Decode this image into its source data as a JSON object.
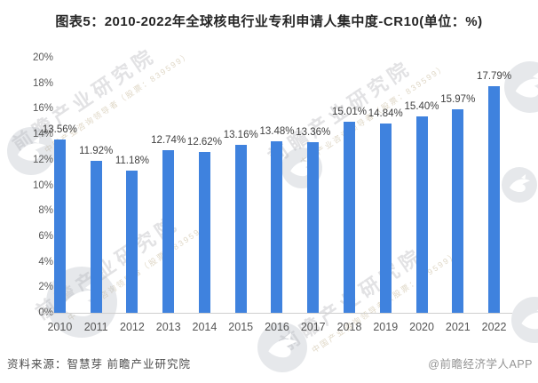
{
  "title": "图表5：2010-2022年全球核电行业专利申请人集中度-CR10(单位：%)",
  "footer": {
    "source": "资料来源：智慧芽 前瞻产业研究院",
    "brand": "@前瞻经济学人APP"
  },
  "watermark": {
    "main_text": "前瞻产业研究院",
    "sub_text": "中国产业咨询领导者（股票：839599）"
  },
  "colors": {
    "bar": "#3f82de",
    "title_text": "#262626",
    "axis_text": "#595959",
    "value_label_text": "#404040",
    "baseline": "#cfcfcf",
    "source_text": "#4d4d4d",
    "brand_text": "#949494"
  },
  "chart_data": {
    "type": "bar",
    "title": "图表5：2010-2022年全球核电行业专利申请人集中度-CR10(单位：%)",
    "categories": [
      "2010",
      "2011",
      "2012",
      "2013",
      "2014",
      "2015",
      "2016",
      "2017",
      "2018",
      "2019",
      "2020",
      "2021",
      "2022"
    ],
    "values": [
      13.56,
      11.92,
      11.18,
      12.74,
      12.62,
      13.16,
      13.48,
      13.36,
      15.01,
      14.84,
      15.4,
      15.97,
      17.79
    ],
    "data_labels": [
      "13.56%",
      "11.92%",
      "11.18%",
      "12.74%",
      "12.62%",
      "13.16%",
      "13.48%",
      "13.36%",
      "15.01%",
      "14.84%",
      "15.40%",
      "15.97%",
      "17.79%"
    ],
    "unit": "%",
    "xlabel": "",
    "ylabel": "",
    "ylim": [
      0,
      20
    ],
    "y_axis": {
      "min": 0,
      "max": 20,
      "step": 2,
      "labels": [
        "0%",
        "2%",
        "4%",
        "6%",
        "8%",
        "10%",
        "12%",
        "14%",
        "16%",
        "18%",
        "20%"
      ]
    },
    "grid": false,
    "legend": "none"
  }
}
